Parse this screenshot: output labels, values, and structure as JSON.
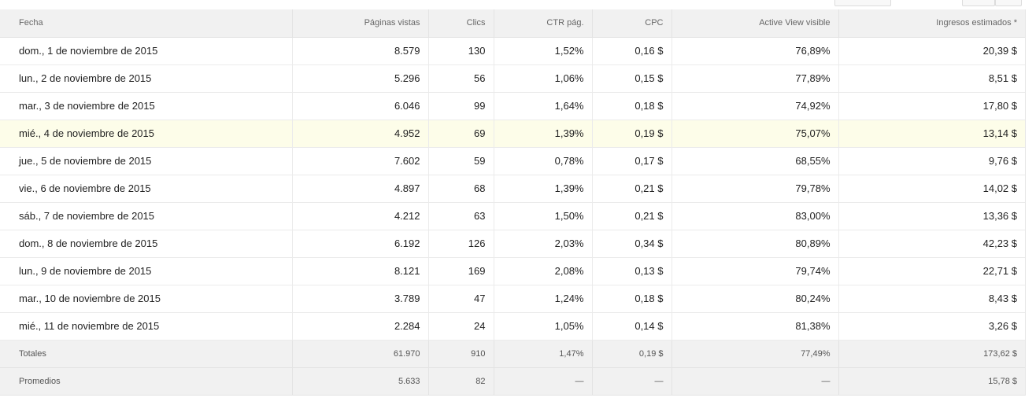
{
  "table": {
    "headers": {
      "date": "Fecha",
      "pageviews": "Páginas vistas",
      "clicks": "Clics",
      "ctr": "CTR pág.",
      "cpc": "CPC",
      "active_view": "Active View visible",
      "revenue": "Ingresos estimados *"
    },
    "rows": [
      {
        "date": "dom., 1 de noviembre de 2015",
        "pageviews": "8.579",
        "clicks": "130",
        "ctr": "1,52%",
        "cpc": "0,16 $",
        "active_view": "76,89%",
        "revenue": "20,39 $"
      },
      {
        "date": "lun., 2 de noviembre de 2015",
        "pageviews": "5.296",
        "clicks": "56",
        "ctr": "1,06%",
        "cpc": "0,15 $",
        "active_view": "77,89%",
        "revenue": "8,51 $"
      },
      {
        "date": "mar., 3 de noviembre de 2015",
        "pageviews": "6.046",
        "clicks": "99",
        "ctr": "1,64%",
        "cpc": "0,18 $",
        "active_view": "74,92%",
        "revenue": "17,80 $"
      },
      {
        "date": "mié., 4 de noviembre de 2015",
        "pageviews": "4.952",
        "clicks": "69",
        "ctr": "1,39%",
        "cpc": "0,19 $",
        "active_view": "75,07%",
        "revenue": "13,14 $"
      },
      {
        "date": "jue., 5 de noviembre de 2015",
        "pageviews": "7.602",
        "clicks": "59",
        "ctr": "0,78%",
        "cpc": "0,17 $",
        "active_view": "68,55%",
        "revenue": "9,76 $"
      },
      {
        "date": "vie., 6 de noviembre de 2015",
        "pageviews": "4.897",
        "clicks": "68",
        "ctr": "1,39%",
        "cpc": "0,21 $",
        "active_view": "79,78%",
        "revenue": "14,02 $"
      },
      {
        "date": "sáb., 7 de noviembre de 2015",
        "pageviews": "4.212",
        "clicks": "63",
        "ctr": "1,50%",
        "cpc": "0,21 $",
        "active_view": "83,00%",
        "revenue": "13,36 $"
      },
      {
        "date": "dom., 8 de noviembre de 2015",
        "pageviews": "6.192",
        "clicks": "126",
        "ctr": "2,03%",
        "cpc": "0,34 $",
        "active_view": "80,89%",
        "revenue": "42,23 $"
      },
      {
        "date": "lun., 9 de noviembre de 2015",
        "pageviews": "8.121",
        "clicks": "169",
        "ctr": "2,08%",
        "cpc": "0,13 $",
        "active_view": "79,74%",
        "revenue": "22,71 $"
      },
      {
        "date": "mar., 10 de noviembre de 2015",
        "pageviews": "3.789",
        "clicks": "47",
        "ctr": "1,24%",
        "cpc": "0,18 $",
        "active_view": "80,24%",
        "revenue": "8,43 $"
      },
      {
        "date": "mié., 11 de noviembre de 2015",
        "pageviews": "2.284",
        "clicks": "24",
        "ctr": "1,05%",
        "cpc": "0,14 $",
        "active_view": "81,38%",
        "revenue": "3,26 $"
      }
    ],
    "totals": {
      "date": "Totales",
      "pageviews": "61.970",
      "clicks": "910",
      "ctr": "1,47%",
      "cpc": "0,19 $",
      "active_view": "77,49%",
      "revenue": "173,62 $"
    },
    "averages": {
      "date": "Promedios",
      "pageviews": "5.633",
      "clicks": "82",
      "ctr": "—",
      "cpc": "—",
      "active_view": "—",
      "revenue": "15,78 $"
    }
  },
  "highlight_color": "#fdfde9"
}
